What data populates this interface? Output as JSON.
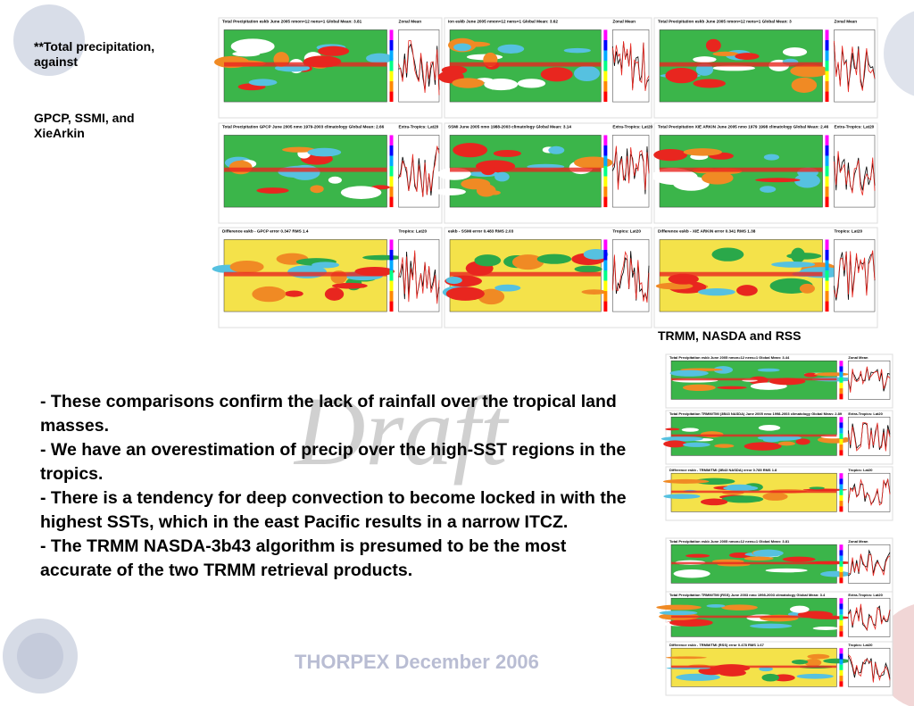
{
  "notes": [
    "**Total precipitation, against",
    "GPCP, SSMI, and XieArkin"
  ],
  "trmm_label": "TRMM,  NASDA and RSS",
  "watermark": "Draft",
  "bullets": [
    "- These comparisons confirm the lack of rainfall over the tropical land masses.",
    "- We have an overestimation of precip over the high-SST regions in the tropics.",
    "- There is a tendency for deep convection to become locked in with the highest SSTs, which in the east Pacific results in a narrow ITCZ.",
    "- The TRMM NASDA-3b43 algorithm is presumed to be the most accurate of the two TRMM retrieval products."
  ],
  "footer": "THORPEX December 2006",
  "grid_panels": [
    {
      "title": "Total Precipitation eskb June 2005 nmon=12 nens=1 Global Mean: 3.81",
      "side": "Zonal Mean"
    },
    {
      "title": "ion eskb June 2005 nmon=12 nens=1 Global Mean: 3.62",
      "side": "Zonal Mean"
    },
    {
      "title": "Total Precipitation eskb June 2005 nmon=12 nens=1 Global Mean: 3",
      "side": "Zonal Mean"
    },
    {
      "title": "Total Precipitation GPCP June 2005 nmo 1979-2003 climatology Global Mean: 2.66",
      "side": "Extra-Tropics: Lat20"
    },
    {
      "title": "SSMI June 2005 nmo 1988-2003 climatology Global Mean: 3.14",
      "side": "Extra-Tropics: Lat20"
    },
    {
      "title": "Total Precipitation XIE ARKIN June 2005 nmo 1979 1998 climatology Global Mean: 2.46",
      "side": "Extra-Tropics: Lat20"
    },
    {
      "title": "Difference  eskb - GPCP  error 0.347 RMS 1.4",
      "side": "Tropics: Lat20"
    },
    {
      "title": "eskb - SSMI  error 0.483 RMS 2.03",
      "side": "Tropics: Lat20"
    },
    {
      "title": "Difference  eskb - XIE ARKIN  error 0.341 RMS 1.38",
      "side": "Tropics: Lat20"
    }
  ],
  "right_panels": [
    {
      "title": "Total Precipitation eskb June 2005 nmon=12 nens=1 Global Mean: 3.44",
      "side": "Zonal Mean"
    },
    {
      "title": "Total Precipitation TRMM/TMI (3B43 NASDA) June 2005 nmo 1998-2003 climatology Global Mean: 2.89",
      "side": "Extra-Tropics: Lat20"
    },
    {
      "title": "Difference  eskb - TRMM/TMI (3B43 NASDA)  error 0.785 RMS 1.8",
      "side": "Tropics: Lat20"
    },
    {
      "title": "Total Precipitation eskb June 2005 nmon=12 nens=1 Global Mean: 3.81",
      "side": "Zonal Mean"
    },
    {
      "title": "Total Precipitation TRMM/TMI (RSS) June 2003 nmo 1998-2003 climatology Global Mean: 3.4",
      "side": "Extra-Tropics: Lat20"
    },
    {
      "title": "Difference  eskb - TRMM/TMI (RSS)  error 0.478 RMS 1.67",
      "side": "Tropics: Lat20"
    }
  ]
}
